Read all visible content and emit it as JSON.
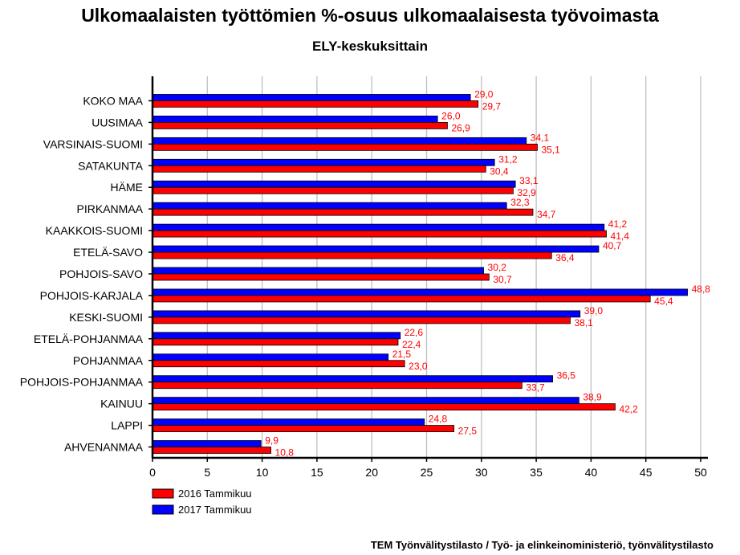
{
  "chart_data": {
    "type": "bar",
    "orientation": "horizontal",
    "title": "Ulkomaalaisten työttömien %-osuus ulkomaalaisesta työvoimasta",
    "subtitle": "ELY-keskuksittain",
    "categories": [
      "KOKO MAA",
      "UUSIMAA",
      "VARSINAIS-SUOMI",
      "SATAKUNTA",
      "HÄME",
      "PIRKANMAA",
      "KAAKKOIS-SUOMI",
      "ETELÄ-SAVO",
      "POHJOIS-SAVO",
      "POHJOIS-KARJALA",
      "KESKI-SUOMI",
      "ETELÄ-POHJANMAA",
      "POHJANMAA",
      "POHJOIS-POHJANMAA",
      "KAINUU",
      "LAPPI",
      "AHVENANMAA"
    ],
    "series": [
      {
        "name": "2016 Tammikuu",
        "color": "#ff0000",
        "values": [
          29.7,
          26.9,
          35.1,
          30.4,
          32.9,
          34.7,
          41.4,
          36.4,
          30.7,
          45.4,
          38.1,
          22.4,
          23.0,
          33.7,
          42.2,
          27.5,
          10.8
        ],
        "labels": [
          "29,7",
          "26,9",
          "35,1",
          "30,4",
          "32,9",
          "34,7",
          "41,4",
          "36,4",
          "30,7",
          "45,4",
          "38,1",
          "22,4",
          "23,0",
          "33,7",
          "42,2",
          "27,5",
          "10,8"
        ]
      },
      {
        "name": "2017 Tammikuu",
        "color": "#0000ff",
        "values": [
          29.0,
          26.0,
          34.1,
          31.2,
          33.1,
          32.3,
          41.2,
          40.7,
          30.2,
          48.8,
          39.0,
          22.6,
          21.5,
          36.5,
          38.9,
          24.8,
          9.9
        ],
        "labels": [
          "29,0",
          "26,0",
          "34,1",
          "31,2",
          "33,1",
          "32,3",
          "41,2",
          "40,7",
          "30,2",
          "48,8",
          "39,0",
          "22,6",
          "21,5",
          "36,5",
          "38,9",
          "24,8",
          "9,9"
        ]
      }
    ],
    "xlim": [
      0,
      50
    ],
    "xticks": [
      "0",
      "5",
      "10",
      "15",
      "20",
      "25",
      "30",
      "35",
      "40",
      "45",
      "50"
    ],
    "grid": true,
    "legend_position": "bottom-left",
    "label_color": "#ff0000",
    "grid_color": "#c0c0c0"
  },
  "source": "TEM Työnvälitystilasto / Työ- ja elinkeinoministeriö, työnvälitystilasto"
}
